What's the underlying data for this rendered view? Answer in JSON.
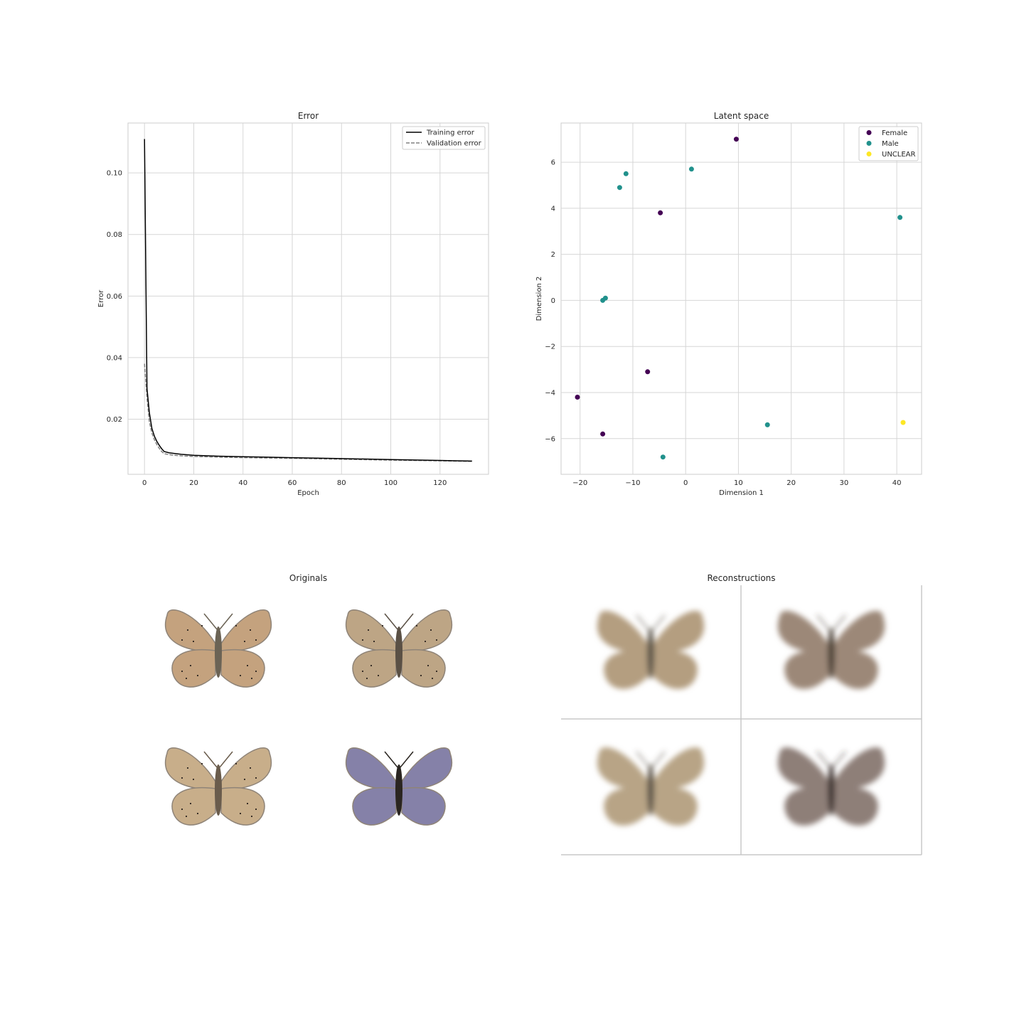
{
  "chart_data": [
    {
      "type": "line",
      "title": "Error",
      "xlabel": "Epoch",
      "ylabel": "Error",
      "xlim": [
        -6.7,
        139.7
      ],
      "ylim": [
        0.0021,
        0.1162
      ],
      "xticks": [
        0,
        20,
        40,
        60,
        80,
        100,
        120
      ],
      "yticks": [
        0.02,
        0.04,
        0.06,
        0.08,
        0.1
      ],
      "ytick_labels": [
        "0.02",
        "0.04",
        "0.06",
        "0.08",
        "0.10"
      ],
      "grid": true,
      "legend_position": "upper right",
      "series": [
        {
          "name": "Training error",
          "style": "solid",
          "color": "#000000",
          "x": [
            0,
            1,
            2,
            3,
            4,
            5,
            6,
            7,
            8,
            10,
            12,
            15,
            20,
            30,
            40,
            60,
            80,
            100,
            120,
            133
          ],
          "y": [
            0.111,
            0.03,
            0.022,
            0.017,
            0.0145,
            0.0128,
            0.0115,
            0.0104,
            0.0095,
            0.0091,
            0.0089,
            0.0086,
            0.0083,
            0.008,
            0.0078,
            0.0075,
            0.0072,
            0.0069,
            0.0066,
            0.0064
          ]
        },
        {
          "name": "Validation error",
          "style": "dashed",
          "color": "#808080",
          "x": [
            0,
            1,
            2,
            3,
            4,
            5,
            6,
            7,
            8,
            10,
            12,
            15,
            20,
            30,
            40,
            60,
            80,
            100,
            120,
            133
          ],
          "y": [
            0.038,
            0.027,
            0.019,
            0.0155,
            0.0133,
            0.0118,
            0.0105,
            0.0095,
            0.0088,
            0.0085,
            0.0083,
            0.0081,
            0.0079,
            0.0077,
            0.0075,
            0.0073,
            0.007,
            0.0067,
            0.0065,
            0.0063
          ]
        }
      ]
    },
    {
      "type": "scatter",
      "title": "Latent space",
      "xlabel": "Dimension 1",
      "ylabel": "Dimension 2",
      "xlim": [
        -23.6,
        44.7
      ],
      "ylim": [
        -7.55,
        7.7
      ],
      "xticks": [
        -20,
        -10,
        0,
        10,
        20,
        30,
        40
      ],
      "xtick_labels": [
        "−20",
        "−10",
        "0",
        "10",
        "20",
        "30",
        "40"
      ],
      "yticks": [
        -6,
        -4,
        -2,
        0,
        2,
        4,
        6
      ],
      "ytick_labels": [
        "−6",
        "−4",
        "−2",
        "0",
        "2",
        "4",
        "6"
      ],
      "grid": true,
      "legend_position": "upper right",
      "series": [
        {
          "name": "Female",
          "color": "#440154",
          "points": [
            [
              9.6,
              7.0
            ],
            [
              -4.8,
              3.8
            ],
            [
              -7.2,
              -3.1
            ],
            [
              -20.5,
              -4.2
            ],
            [
              -15.7,
              -5.8
            ]
          ]
        },
        {
          "name": "Male",
          "color": "#21918c",
          "points": [
            [
              -11.3,
              5.5
            ],
            [
              -12.5,
              4.9
            ],
            [
              1.1,
              5.7
            ],
            [
              40.6,
              3.6
            ],
            [
              -15.7,
              0.0
            ],
            [
              -15.2,
              0.1
            ],
            [
              15.5,
              -5.4
            ],
            [
              -4.3,
              -6.8
            ]
          ]
        },
        {
          "name": "UNCLEAR",
          "color": "#fde725",
          "points": [
            [
              41.2,
              -5.3
            ]
          ]
        }
      ]
    }
  ],
  "images": {
    "originals_title": "Originals",
    "reconstructions_title": "Reconstructions",
    "originals": [
      {
        "name": "original-1",
        "wing_color": "#c4a27e",
        "body_color": "#6b6355",
        "spots": true
      },
      {
        "name": "original-2",
        "wing_color": "#bda585",
        "body_color": "#5a5045",
        "spots": true
      },
      {
        "name": "original-3",
        "wing_color": "#c8ae8a",
        "body_color": "#6a5c4c",
        "spots": true
      },
      {
        "name": "original-4",
        "wing_color": "#8581a8",
        "body_color": "#2a2520",
        "spots": false
      }
    ],
    "reconstructions": [
      {
        "name": "reconstruction-1",
        "wing_color": "#b49e80",
        "body_color": "#5c5448"
      },
      {
        "name": "reconstruction-2",
        "wing_color": "#9c8878",
        "body_color": "#4d4238"
      },
      {
        "name": "reconstruction-3",
        "wing_color": "#b8a486",
        "body_color": "#5d5548"
      },
      {
        "name": "reconstruction-4",
        "wing_color": "#8e7f78",
        "body_color": "#403630"
      }
    ]
  }
}
